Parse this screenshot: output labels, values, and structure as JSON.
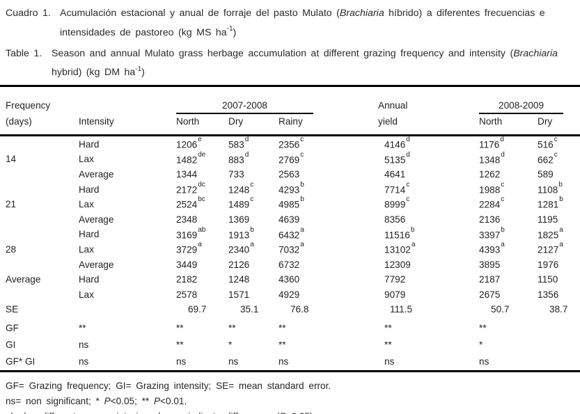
{
  "captions": {
    "cuadro": {
      "label": "Cuadro 1.",
      "parts": [
        {
          "t": "Acumulación estacional y anual de forraje del pasto Mulato ("
        },
        {
          "t": "Brachiaria",
          "i": true
        },
        {
          "t": " híbrido) a diferentes frecuencias e intensidades de pastoreo (kg MS ha"
        },
        {
          "t": "-1",
          "sup": true
        },
        {
          "t": ")"
        }
      ]
    },
    "table": {
      "label": "Table 1.",
      "parts": [
        {
          "t": "Season and annual Mulato grass herbage accumulation at different grazing frequency and intensity ("
        },
        {
          "t": "Brachiaria",
          "i": true
        },
        {
          "t": " hybrid)  (kg DM ha"
        },
        {
          "t": "-1",
          "sup": true
        },
        {
          "t": ")"
        }
      ]
    }
  },
  "table": {
    "headers": {
      "frequency_line1": "Frequency",
      "frequency_line2": "(days)",
      "intensity": "Intensity",
      "group_2007_2008": "2007-2008",
      "group_2008_2009": "2008-2009",
      "north1": "North",
      "dry1": "Dry",
      "rainy": "Rainy",
      "annual_line1": "Annual",
      "annual_line2": "yield",
      "north2": "North",
      "dry2": "Dry"
    },
    "rows": [
      {
        "label": "",
        "cells": [
          "Hard",
          {
            "v": "1206",
            "s": "e"
          },
          {
            "v": "583",
            "s": "d"
          },
          {
            "v": "2356",
            "s": "c"
          },
          {
            "v": "4146",
            "s": "d"
          },
          {
            "v": "1176",
            "s": "d"
          },
          {
            "v": "516",
            "s": "c"
          }
        ]
      },
      {
        "label": "14",
        "cells": [
          "Lax",
          {
            "v": "1482",
            "s": "de"
          },
          {
            "v": "883",
            "s": "d"
          },
          {
            "v": "2769",
            "s": "c"
          },
          {
            "v": "5135",
            "s": "d"
          },
          {
            "v": "1348",
            "s": "d"
          },
          {
            "v": "662",
            "s": "c"
          }
        ]
      },
      {
        "label": "",
        "cells": [
          "Average",
          "1344",
          "733",
          "2563",
          "4641",
          "1262",
          "589"
        ]
      },
      {
        "label": "",
        "cells": [
          "Hard",
          {
            "v": "2172",
            "s": "dc"
          },
          {
            "v": "1248",
            "s": "c"
          },
          {
            "v": "4293",
            "s": "b"
          },
          {
            "v": "7714",
            "s": "c"
          },
          {
            "v": "1988",
            "s": "c"
          },
          {
            "v": "1108",
            "s": "b"
          }
        ]
      },
      {
        "label": "21",
        "cells": [
          "Lax",
          {
            "v": "2524",
            "s": "bc"
          },
          {
            "v": "1489",
            "s": "c"
          },
          {
            "v": "4985",
            "s": "b"
          },
          {
            "v": "8999",
            "s": "c"
          },
          {
            "v": "2284",
            "s": "c"
          },
          {
            "v": "1281",
            "s": "b"
          }
        ]
      },
      {
        "label": "",
        "cells": [
          "Average",
          "2348",
          "1369",
          "4639",
          "8356",
          "2136",
          "1195"
        ]
      },
      {
        "label": "",
        "cells": [
          "Hard",
          {
            "v": "3169",
            "s": "ab"
          },
          {
            "v": "1913",
            "s": "b"
          },
          {
            "v": "6432",
            "s": "a"
          },
          {
            "v": "11516",
            "s": "b"
          },
          {
            "v": "3397",
            "s": "b"
          },
          {
            "v": "1825",
            "s": "a"
          }
        ]
      },
      {
        "label": "28",
        "cells": [
          "Lax",
          {
            "v": "3729",
            "s": "a"
          },
          {
            "v": "2340",
            "s": "a"
          },
          {
            "v": "7032",
            "s": "a"
          },
          {
            "v": "13102",
            "s": "a"
          },
          {
            "v": "4393",
            "s": "a"
          },
          {
            "v": "2127",
            "s": "a"
          }
        ]
      },
      {
        "label": "",
        "cells": [
          "Average",
          "3449",
          "2126",
          "6732",
          "12309",
          "3895",
          "1976"
        ]
      },
      {
        "label": "Average",
        "cells": [
          "Hard",
          "2182",
          "1248",
          "4360",
          "7792",
          "2187",
          "1150"
        ]
      },
      {
        "label": "",
        "cells": [
          "Lax",
          "2578",
          "1571",
          "4929",
          "9079",
          "2675",
          "1356"
        ]
      },
      {
        "label": "SE",
        "type": "se",
        "cells": [
          "",
          "69.7",
          "35.1",
          "76.8",
          "111.5",
          "50.7",
          "38.7"
        ]
      },
      {
        "label": "GF",
        "type": "sig first-sig",
        "cells": [
          "**",
          "**",
          "**",
          "**",
          "**",
          "**",
          ""
        ]
      },
      {
        "label": "GI",
        "type": "sig",
        "cells": [
          "ns",
          "**",
          "*",
          "**",
          "**",
          "*",
          ""
        ]
      },
      {
        "label": "GF* GI",
        "type": "sig",
        "cells": [
          "ns",
          "ns",
          "ns",
          "ns",
          "ns",
          "ns",
          ""
        ]
      }
    ]
  },
  "footnotes": {
    "line1": [
      {
        "t": "GF= Grazing frequency; GI= Grazing intensity; SE= mean standard error."
      }
    ],
    "line2": [
      {
        "t": "ns= non significant; * "
      },
      {
        "t": "P",
        "i": true
      },
      {
        "t": "<0.05; ** "
      },
      {
        "t": "P",
        "i": true
      },
      {
        "t": "<0.01."
      }
    ],
    "line3": [
      {
        "t": "abcde= different superscripts in columns indicate differences ("
      },
      {
        "t": "P",
        "i": true
      },
      {
        "t": "<0.05)."
      }
    ]
  }
}
